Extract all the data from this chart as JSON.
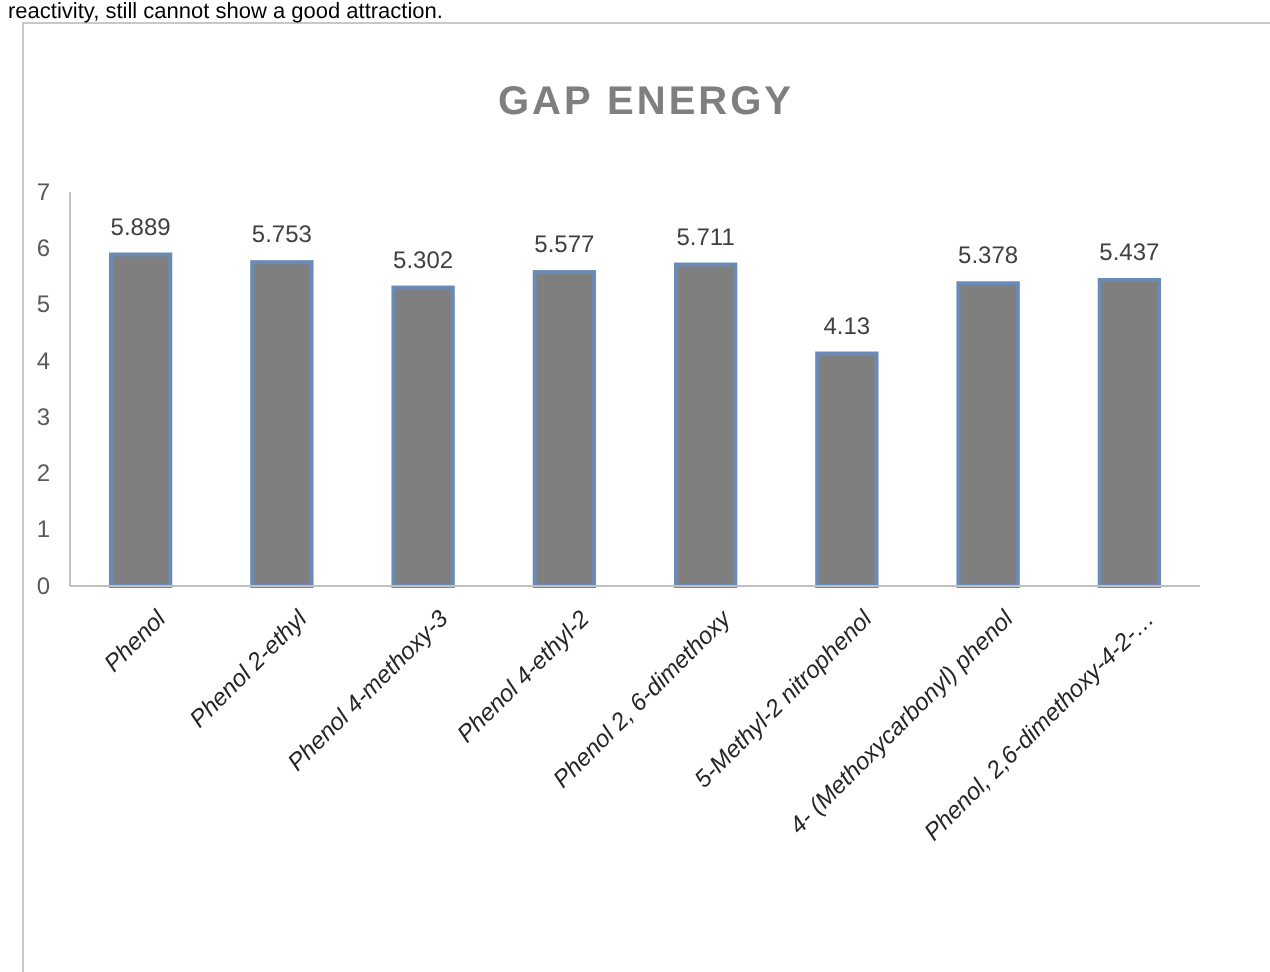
{
  "chart_data": {
    "type": "bar",
    "title": "GAP ENERGY",
    "annotations": [
      "reactivity, still cannot show a good attraction."
    ],
    "categories": [
      "Phenol",
      "Phenol 2-ethyl",
      "Phenol 4-methoxy-3",
      "Phenol 4-ethyl-2",
      "Phenol 2, 6-dimethoxy",
      "5-Methyl-2 nitrophenol",
      "4- (Methoxycarbonyl) phenol",
      "Phenol, 2,6-dimethoxy-4-2-…"
    ],
    "values": [
      5.889,
      5.753,
      5.302,
      5.577,
      5.711,
      4.13,
      5.378,
      5.437
    ],
    "color": "#7f7f7f",
    "data_labels": true,
    "ylim": [
      0,
      7
    ],
    "yticks": [
      0,
      1,
      2,
      3,
      4,
      5,
      6,
      7
    ],
    "grid": false
  }
}
